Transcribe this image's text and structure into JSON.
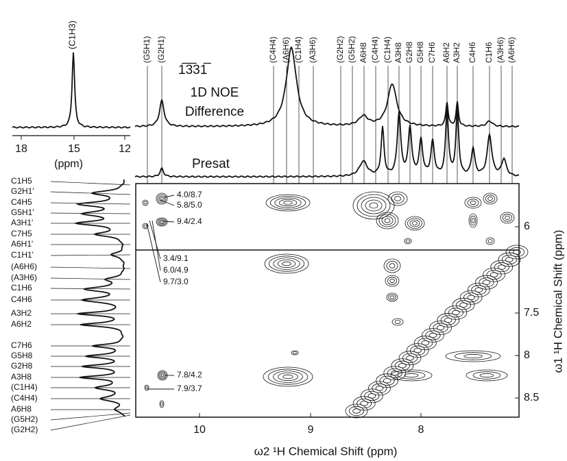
{
  "inset": {
    "label": "(C1H3)",
    "ticks": [
      "18",
      "15",
      "12"
    ],
    "unit": "(ppm)"
  },
  "noe_trace": {
    "title": "1̅3̅31̅",
    "lines": [
      "1D NOE",
      "Difference"
    ]
  },
  "presat_label": "Presat",
  "top_labels": [
    "(G5H1)",
    "(G2H1)",
    "(C4H4)",
    "(A6H6)",
    "(C1H4)",
    "(A3H6)",
    "(G2H2)",
    "(G5H2)",
    "A6H8",
    "(C4H4)",
    "(C1H4)",
    "A3H8",
    "G2H8",
    "G5H8",
    "C7H6",
    "A6H2",
    "A3H2",
    "C4H6",
    "C1H6",
    "(A3H6)",
    "(A6H6)"
  ],
  "left_labels": [
    "C1H5",
    "G2H1'",
    "C4H5",
    "G5H1'",
    "A3H1'",
    "C7H5",
    "A6H1'",
    "C1H1'",
    "(A6H6)",
    "(A3H6)",
    "C1H6",
    "C4H6",
    "A3H2",
    "A6H2",
    "C7H6",
    "G5H8",
    "G2H8",
    "A3H8",
    "(C1H4)",
    "(C4H4)",
    "A6H8",
    "(G5H2)",
    "(G2H2)"
  ],
  "cross_peaks": [
    "4.0/8.7",
    "5.8/5.0",
    "9.4/2.4",
    "3.4/9.1",
    "6.0/4.9",
    "9.7/3.0",
    "7.8/4.2",
    "7.9/3.7"
  ],
  "x_axis": {
    "label": "ω2 ¹H  Chemical Shift  (ppm)",
    "ticks": [
      "10",
      "9",
      "8"
    ]
  },
  "y_axis": {
    "label": "ω1 ¹H  Chemical Shift  (ppm)",
    "ticks": [
      "6",
      "7.5",
      "8",
      "8.5"
    ]
  }
}
